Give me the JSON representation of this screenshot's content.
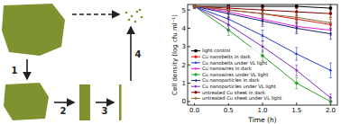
{
  "diagram": {
    "steps": [
      "1",
      "2",
      "3",
      "4"
    ]
  },
  "chart_data": {
    "type": "line",
    "x_label": "Time (h)",
    "y_label": "Cell density (log cfu ml⁻¹)",
    "x": [
      0,
      0.5,
      1,
      1.5,
      2
    ],
    "xlim": [
      -0.1,
      2.1
    ],
    "xticks": [
      {
        "value": 0,
        "label": "0.0"
      },
      {
        "value": 0.5,
        "label": "0.5"
      },
      {
        "value": 1,
        "label": "1.0"
      },
      {
        "value": 1.5,
        "label": "1.5"
      },
      {
        "value": 2,
        "label": "2.0"
      }
    ],
    "ylim": [
      -0.2,
      5.3
    ],
    "yticks": [
      0,
      1,
      2,
      3,
      4,
      5
    ],
    "legend": "lower left",
    "series": [
      {
        "name": "light control",
        "color": "#000000",
        "marker": "square",
        "values": [
          5.2,
          5.2,
          5.2,
          5.2,
          5.1
        ],
        "errors": [
          0.1,
          0.1,
          0.15,
          0.1,
          0.2
        ]
      },
      {
        "name": "Cu nanobelts in dark",
        "color": "#e41a1c",
        "marker": "circle",
        "values": [
          5.2,
          5.0,
          4.8,
          4.5,
          4.2
        ],
        "errors": [
          0.1,
          0.2,
          0.2,
          0.25,
          0.3
        ]
      },
      {
        "name": "Cu nanobelts under VL light",
        "color": "#1f3fd1",
        "marker": "triangle",
        "values": [
          5.2,
          4.5,
          3.6,
          2.6,
          1.7
        ],
        "errors": [
          0.1,
          0.3,
          0.3,
          0.35,
          0.4
        ]
      },
      {
        "name": "Cu nanowires in dark",
        "color": "#e020e0",
        "marker": "triangle-down",
        "values": [
          5.2,
          4.9,
          4.5,
          4.1,
          3.9
        ],
        "errors": [
          0.1,
          0.3,
          0.3,
          0.3,
          0.3
        ]
      },
      {
        "name": "Cu nanowires under VL light",
        "color": "#2ca02c",
        "marker": "diamond",
        "values": [
          5.2,
          3.9,
          2.5,
          1.0,
          0.0
        ],
        "errors": [
          0.1,
          0.3,
          0.3,
          0.3,
          0.1
        ]
      },
      {
        "name": "Cu nanoparticles in dark",
        "color": "#1a237e",
        "marker": "triangle-left",
        "values": [
          5.2,
          4.8,
          4.4,
          4.0,
          3.7
        ],
        "errors": [
          0.1,
          0.2,
          0.3,
          0.3,
          0.3
        ]
      },
      {
        "name": "Cu nanoparticles under VL light",
        "color": "#7b2cbf",
        "marker": "triangle-right",
        "values": [
          5.2,
          4.2,
          3.0,
          1.7,
          0.2
        ],
        "errors": [
          0.1,
          0.3,
          0.3,
          0.3,
          0.2
        ]
      },
      {
        "name": "untreated Cu sheet in dark",
        "color": "#800000",
        "marker": "hexagon",
        "values": [
          5.2,
          5.1,
          5.0,
          4.9,
          4.8
        ],
        "errors": [
          0.1,
          0.15,
          0.2,
          0.2,
          0.2
        ]
      },
      {
        "name": "untreated Cu sheet under VL light",
        "color": "#8b6d3a",
        "marker": "star",
        "values": [
          5.2,
          5.0,
          4.8,
          4.6,
          4.3
        ],
        "errors": [
          0.1,
          0.2,
          0.2,
          0.25,
          0.3
        ]
      }
    ]
  }
}
